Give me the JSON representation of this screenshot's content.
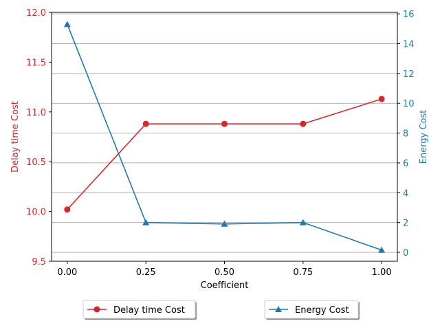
{
  "chart_data": {
    "type": "line",
    "xlabel": "Coefficient",
    "x": [
      0.0,
      0.25,
      0.5,
      0.75,
      1.0
    ],
    "x_ticks": [
      "0.00",
      "0.25",
      "0.50",
      "0.75",
      "1.00"
    ],
    "xlim": [
      -0.05,
      1.05
    ],
    "grid": "horizontal lines at right-axis ticks",
    "left_axis": {
      "label": "Delay time Cost",
      "color": "#d62728",
      "ylim": [
        9.5,
        12.0
      ],
      "ticks": [
        "9.5",
        "10.0",
        "10.5",
        "11.0",
        "11.5",
        "12.0"
      ]
    },
    "right_axis": {
      "label": "Energy Cost",
      "color": "#1f77b4",
      "ylim": [
        -0.6,
        16.1
      ],
      "ticks": [
        "0",
        "2",
        "4",
        "6",
        "8",
        "10",
        "12",
        "14",
        "16"
      ]
    },
    "series": [
      {
        "name": "Delay time Cost",
        "axis": "left",
        "color": "#d62728",
        "marker": "circle",
        "values": [
          10.02,
          10.88,
          10.88,
          10.88,
          11.13
        ]
      },
      {
        "name": "Energy Cost",
        "axis": "right",
        "color": "#1f77b4",
        "marker": "triangle",
        "values": [
          15.3,
          2.0,
          1.9,
          2.0,
          0.15
        ]
      }
    ],
    "legend": "below the plot, two boxes side by side"
  }
}
